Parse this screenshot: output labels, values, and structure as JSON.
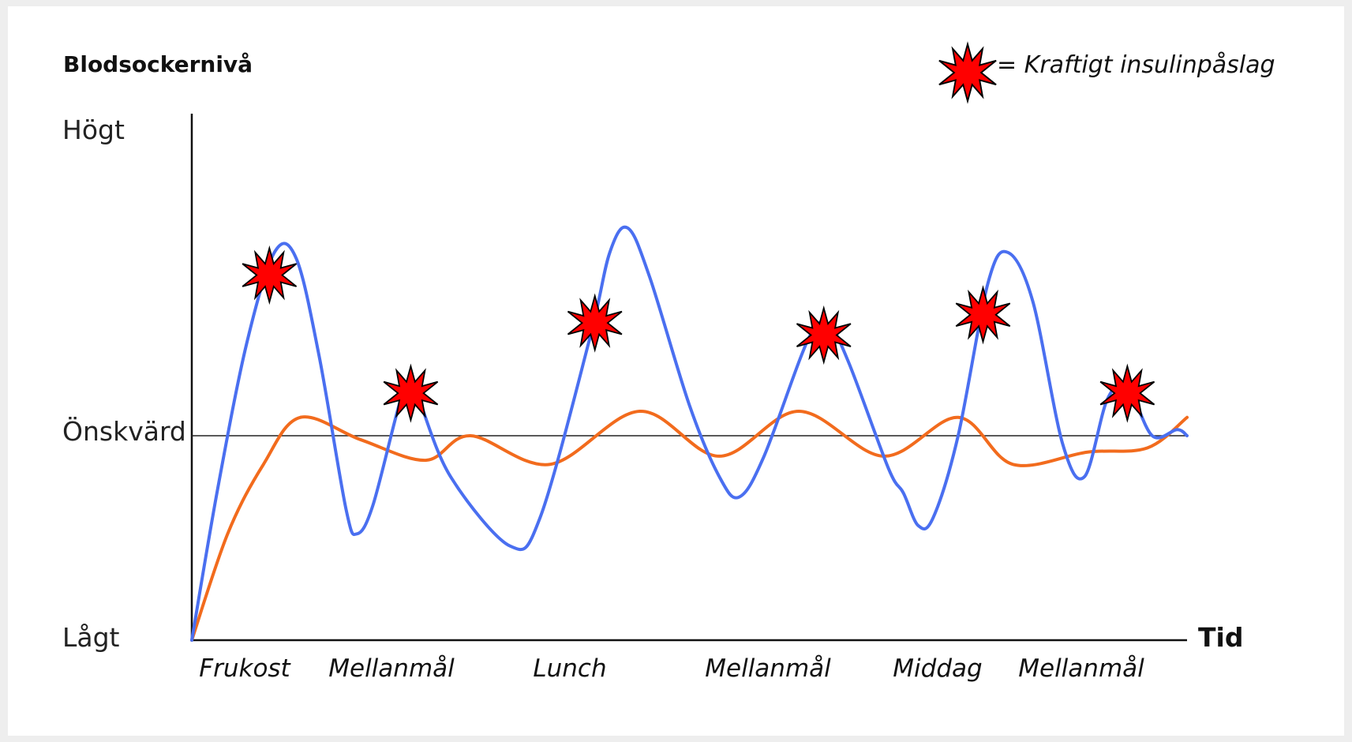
{
  "chart_data": {
    "type": "line",
    "title": "Blodsockernivå",
    "xlabel": "Tid",
    "y_levels": {
      "high": "Högt",
      "desired": "Önskvärd",
      "low": "Lågt"
    },
    "categories": [
      "Frukost",
      "Mellanmål",
      "Lunch",
      "Mellanmål",
      "Middag",
      "Mellanmål"
    ],
    "legend": {
      "marker": "red-starburst",
      "label": "= Kraftigt insulinpåslag"
    },
    "colors": {
      "blue_series": "#4a6ff0",
      "orange_series": "#f26b1d",
      "burst": "#ff0000",
      "axis": "#111111"
    },
    "scale_note": "y values: 0 = Lågt, 0.5 = Önskvärd, 1 = Högt; x values in time units 0–10",
    "xlim": [
      0,
      10
    ],
    "ylim": [
      0,
      1
    ],
    "series": [
      {
        "values": [
          [
            0,
            0
          ],
          [
            0.26,
            0.37
          ],
          [
            0.55,
            0.65
          ],
          [
            0.83,
            0.8
          ],
          [
            1.05,
            0.79
          ],
          [
            1.28,
            0.63
          ],
          [
            1.55,
            0.32
          ],
          [
            1.66,
            0.26
          ],
          [
            1.82,
            0.33
          ],
          [
            2.1,
            0.56
          ],
          [
            2.2,
            0.58
          ],
          [
            2.28,
            0.56
          ],
          [
            2.6,
            0.4
          ],
          [
            3.2,
            0.23
          ],
          [
            3.5,
            0.3
          ],
          [
            4.0,
            0.66
          ],
          [
            4.2,
            0.8
          ],
          [
            4.38,
            0.84
          ],
          [
            4.6,
            0.76
          ],
          [
            5.0,
            0.55
          ],
          [
            5.3,
            0.4
          ],
          [
            5.5,
            0.35
          ],
          [
            5.75,
            0.45
          ],
          [
            6.2,
            0.66
          ],
          [
            6.4,
            0.68
          ],
          [
            6.6,
            0.62
          ],
          [
            7.0,
            0.42
          ],
          [
            7.15,
            0.36
          ],
          [
            7.3,
            0.28
          ],
          [
            7.45,
            0.3
          ],
          [
            7.7,
            0.5
          ],
          [
            8.0,
            0.75
          ],
          [
            8.2,
            0.8
          ],
          [
            8.45,
            0.72
          ],
          [
            8.75,
            0.48
          ],
          [
            8.97,
            0.4
          ],
          [
            9.2,
            0.56
          ],
          [
            9.4,
            0.58
          ],
          [
            9.65,
            0.5
          ],
          [
            9.9,
            0.51
          ],
          [
            10,
            0.5
          ]
        ]
      },
      {
        "values": [
          [
            0,
            0
          ],
          [
            0.36,
            0.26
          ],
          [
            0.72,
            0.43
          ],
          [
            1.09,
            0.53
          ],
          [
            1.7,
            0.49
          ],
          [
            2.35,
            0.44
          ],
          [
            2.8,
            0.5
          ],
          [
            3.6,
            0.43
          ],
          [
            4.5,
            0.54
          ],
          [
            5.3,
            0.45
          ],
          [
            6.1,
            0.54
          ],
          [
            6.95,
            0.45
          ],
          [
            7.7,
            0.53
          ],
          [
            8.25,
            0.43
          ],
          [
            9.0,
            0.46
          ],
          [
            9.6,
            0.47
          ],
          [
            10,
            0.53
          ]
        ]
      }
    ],
    "bursts_at_x": [
      0.78,
      2.2,
      4.05,
      6.35,
      7.95,
      9.4
    ]
  }
}
